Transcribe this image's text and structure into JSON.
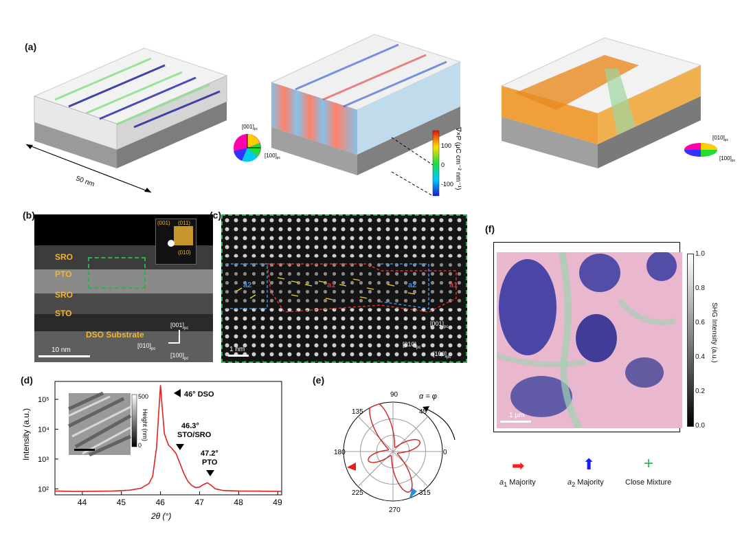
{
  "panel_labels": {
    "a": "(a)",
    "b": "(b)",
    "c": "(c)",
    "d": "(d)",
    "e": "(e)",
    "f": "(f)"
  },
  "panel_a": {
    "scale_label": "50 nm",
    "wheel1_axes": {
      "top": "[001]",
      "top_sub": "pc",
      "right": "[100]",
      "right_sub": "pc"
    },
    "colorbar": {
      "label": "∇×P (μC cm⁻² nm⁻¹)",
      "ticks": [
        "100",
        "0",
        "-100"
      ]
    },
    "wheel2_axes": {
      "top": "[010]",
      "top_sub": "pc",
      "right": "[100]",
      "right_sub": "pc"
    }
  },
  "panel_b": {
    "layers": [
      "SRO",
      "PTO",
      "SRO",
      "STO",
      "DSO Substrate"
    ],
    "diffraction_labels": [
      "(001)",
      "(011)",
      "(010)"
    ],
    "scalebar": "10 nm",
    "axes": {
      "v": "[001]",
      "v_sub": "pc",
      "h": "[010]",
      "h_sub": "pc",
      "o": "[100]",
      "o_sub": "pc"
    }
  },
  "panel_c": {
    "scalebar": "1 nm",
    "domain_marks": [
      "a2",
      "a1",
      "a2",
      "a1"
    ],
    "axes": {
      "v": "[001]",
      "v_sub": "pc",
      "h": "[010]",
      "h_sub": "pc",
      "o": "[100]",
      "o_sub": "pc"
    }
  },
  "panel_d": {
    "ylabel": "Intensity (a.u.)",
    "xlabel": "2θ (°)",
    "xticks": [
      "44",
      "45",
      "46",
      "47",
      "48",
      "49"
    ],
    "yticks": [
      "10²",
      "10³",
      "10⁴",
      "10⁵"
    ],
    "peak_labels": [
      {
        "text": "46° DSO"
      },
      {
        "text": "46.3°",
        "text2": "STO/SRO"
      },
      {
        "text": "47.2°",
        "text2": "PTO"
      }
    ],
    "inset_colorbar": {
      "max": "500",
      "min": "0",
      "label": "Height (nm)"
    }
  },
  "panel_e": {
    "angle_labels": [
      "90",
      "45",
      "0",
      "315",
      "270",
      "225",
      "180",
      "135"
    ],
    "annotation": "α = φ"
  },
  "panel_f": {
    "scalebar": "1 μm",
    "colorbar": {
      "ticks": [
        "1.0",
        "0.8",
        "0.6",
        "0.4",
        "0.2",
        "0.0"
      ],
      "label": "SHG Intensity (a.u.)"
    },
    "legend": [
      {
        "sym": "a",
        "sub": "1",
        "text": " Majority",
        "color": "#ff1a1a"
      },
      {
        "sym": "a",
        "sub": "2",
        "text": " Majority",
        "color": "#1a1aff"
      },
      {
        "sym": "",
        "sub": "",
        "text": "Close Mixture",
        "color": "#22bb55"
      }
    ]
  },
  "chart_data": [
    {
      "type": "line",
      "panel": "d",
      "xlabel": "2θ (°)",
      "ylabel": "Intensity (a.u.)",
      "xlim": [
        43.3,
        49.1
      ],
      "ylim_log10": [
        1.8,
        5.6
      ],
      "yscale": "log",
      "series": [
        {
          "color": "#e02020",
          "x": [
            43.3,
            43.8,
            44.3,
            44.8,
            45.2,
            45.5,
            45.7,
            45.8,
            45.9,
            45.95,
            46.0,
            46.05,
            46.1,
            46.2,
            46.3,
            46.4,
            46.5,
            46.6,
            46.7,
            46.8,
            46.9,
            47.0,
            47.1,
            47.2,
            47.3,
            47.4,
            47.6,
            48.0,
            48.5,
            49.1
          ],
          "y": [
            85,
            82,
            83,
            85,
            90,
            105,
            150,
            260,
            2500,
            30000,
            300000,
            40000,
            7000,
            3000,
            2200,
            1500,
            700,
            320,
            180,
            130,
            110,
            115,
            140,
            160,
            130,
            100,
            88,
            85,
            84,
            82
          ]
        }
      ]
    },
    {
      "type": "polar",
      "panel": "e",
      "theta_ticks_deg": [
        0,
        45,
        90,
        135,
        180,
        225,
        270,
        315
      ],
      "r_max": 1.0,
      "series": [
        {
          "color": "#d02020",
          "lobe_angles_deg": [
            112,
            200,
            292,
            20
          ],
          "lobe_amplitudes": [
            1.0,
            0.45,
            0.8,
            0.5
          ]
        }
      ]
    }
  ]
}
